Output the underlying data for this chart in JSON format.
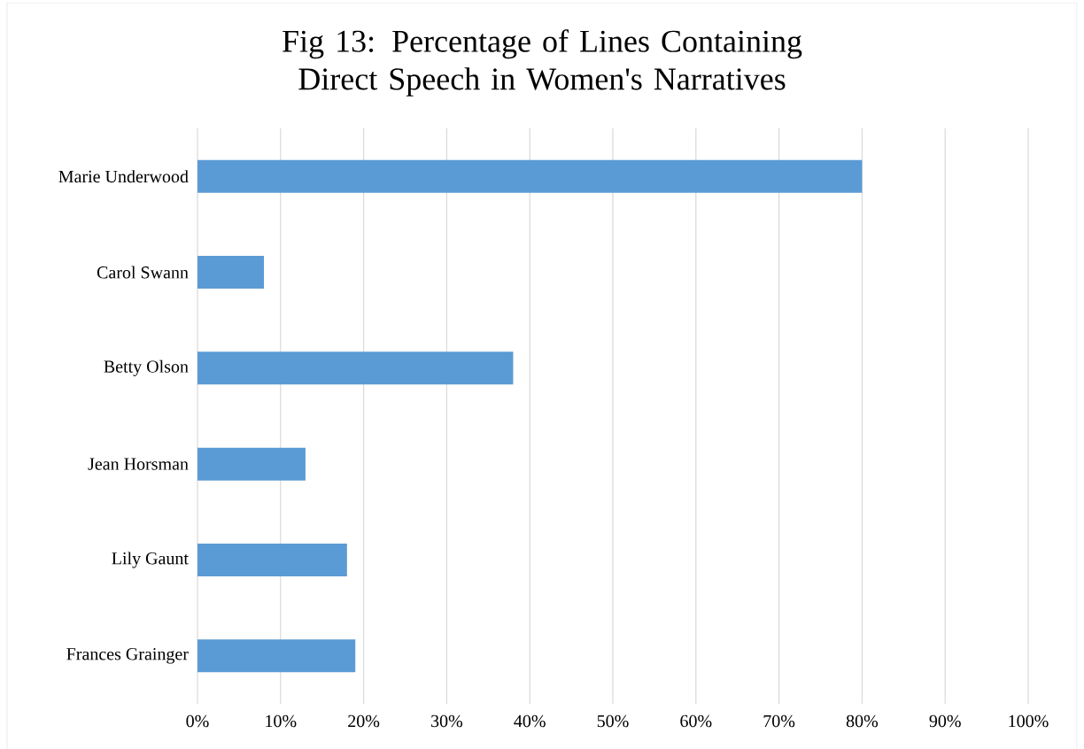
{
  "chart_data": {
    "type": "bar",
    "orientation": "horizontal",
    "title": "Fig 13: Percentage of Lines Containing Direct Speech in Women's Narratives",
    "categories": [
      "Marie Underwood",
      "Carol Swann",
      "Betty Olson",
      "Jean Horsman",
      "Lily Gaunt",
      "Frances Grainger"
    ],
    "values": [
      80,
      8,
      38,
      13,
      18,
      19
    ],
    "color": "#5b9bd5",
    "xlim": [
      0,
      100
    ],
    "xticks": [
      {
        "value": 0,
        "label": "0%"
      },
      {
        "value": 10,
        "label": "10%"
      },
      {
        "value": 20,
        "label": "20%"
      },
      {
        "value": 30,
        "label": "30%"
      },
      {
        "value": 40,
        "label": "40%"
      },
      {
        "value": 50,
        "label": "50%"
      },
      {
        "value": 60,
        "label": "60%"
      },
      {
        "value": 70,
        "label": "70%"
      },
      {
        "value": 80,
        "label": "80%"
      },
      {
        "value": 90,
        "label": "90%"
      },
      {
        "value": 100,
        "label": "100%"
      }
    ],
    "grid": "x"
  }
}
